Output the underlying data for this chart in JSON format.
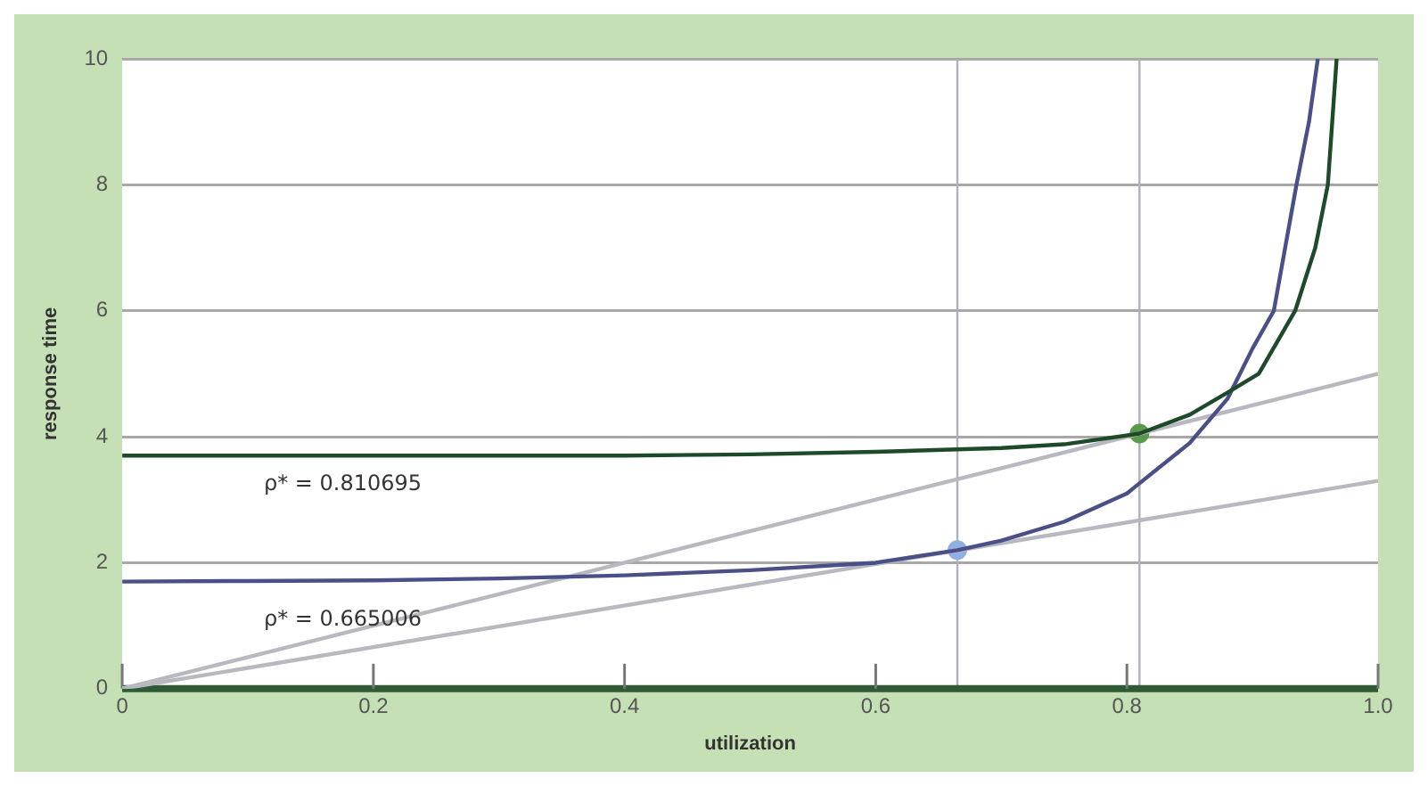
{
  "chart_data": {
    "type": "line",
    "xlabel": "utilization",
    "ylabel": "response time",
    "xlim": [
      0,
      1
    ],
    "ylim": [
      0,
      10
    ],
    "xticks": [
      0,
      0.2,
      0.4,
      0.6,
      0.8,
      {
        "value": 1,
        "label": "1.0"
      }
    ],
    "yticks": [
      0,
      2,
      4,
      6,
      8,
      10
    ],
    "grid": "y",
    "legend": false,
    "marker": "none",
    "series": [
      {
        "color": "#1f4a2a",
        "x": [
          0,
          0.2,
          0.4,
          0.5,
          0.6,
          0.7,
          0.75,
          0.81,
          0.85,
          0.88,
          0.905,
          0.934,
          0.95,
          0.96,
          0.967
        ],
        "values": [
          3.7,
          3.7,
          3.7,
          3.72,
          3.76,
          3.82,
          3.88,
          4.05,
          4.35,
          4.7,
          5.0,
          6,
          7,
          8,
          10
        ]
      },
      {
        "color": "#4a4f88",
        "x": [
          0,
          0.1,
          0.2,
          0.3,
          0.4,
          0.5,
          0.6,
          0.665,
          0.7,
          0.75,
          0.8,
          0.85,
          0.88,
          0.9,
          0.917,
          0.935,
          0.945,
          0.952
        ],
        "values": [
          1.7,
          1.71,
          1.72,
          1.75,
          1.8,
          1.88,
          2.0,
          2.2,
          2.35,
          2.65,
          3.1,
          3.9,
          4.6,
          5.4,
          6,
          8,
          9,
          10
        ]
      },
      {
        "color": "#b8b8c0",
        "x": [
          0,
          1
        ],
        "values": [
          0,
          5.0
        ]
      },
      {
        "color": "#b8b8c0",
        "x": [
          0,
          1
        ],
        "values": [
          0,
          3.3
        ]
      },
      {
        "type": "scatter",
        "marker": "circle",
        "color": "#8fb0e0",
        "x": [
          0.665
        ],
        "values": [
          2.2
        ]
      },
      {
        "type": "scatter",
        "marker": "circle",
        "color": "#5a9a4a",
        "x": [
          0.81
        ],
        "values": [
          4.05
        ]
      }
    ],
    "ref_lines": [
      {
        "axis": "x",
        "value": 0.665,
        "color": "#b0b0b8"
      },
      {
        "axis": "x",
        "value": 0.81,
        "color": "#b0b0b8"
      }
    ],
    "annotations": [
      "ρ* = 0.810695",
      "ρ* = 0.665006"
    ]
  }
}
